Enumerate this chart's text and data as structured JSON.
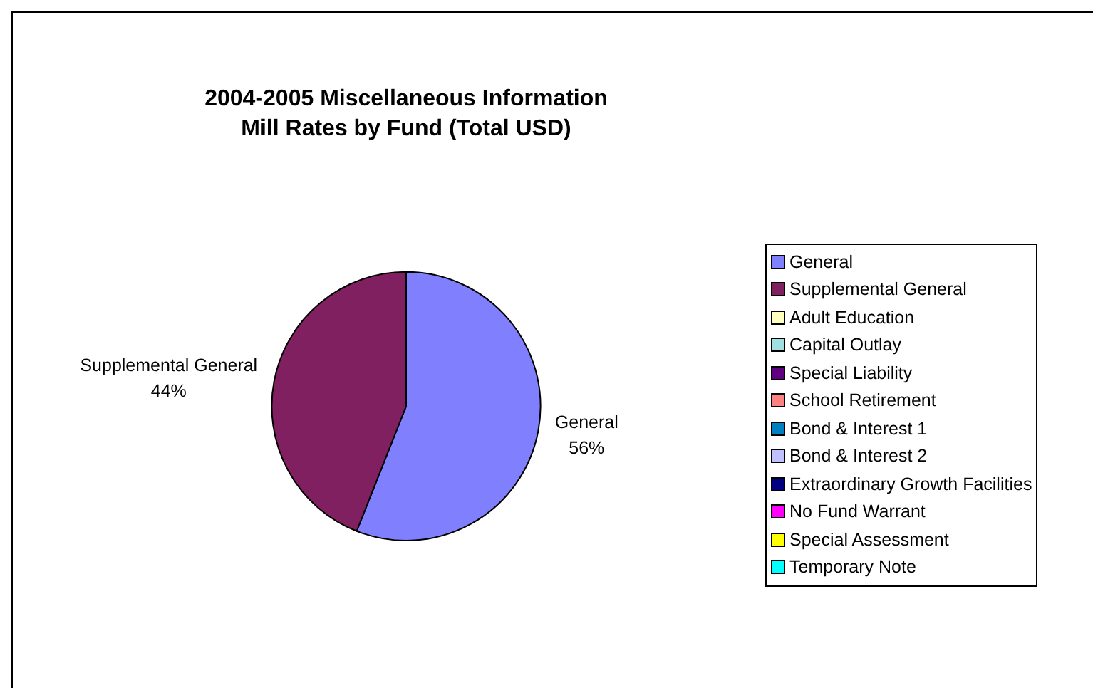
{
  "chart_data": {
    "type": "pie",
    "title": "2004-2005 Miscellaneous Information",
    "subtitle": "Mill Rates by Fund (Total USD)",
    "categories": [
      "General",
      "Supplemental General",
      "Adult Education",
      "Capital Outlay",
      "Special Liability",
      "School Retirement",
      "Bond & Interest 1",
      "Bond & Interest 2",
      "Extraordinary Growth Facilities",
      "No Fund Warrant",
      "Special Assessment",
      "Temporary Note"
    ],
    "values": [
      56,
      44,
      0,
      0,
      0,
      0,
      0,
      0,
      0,
      0,
      0,
      0
    ],
    "colors": [
      "#8080ff",
      "#802060",
      "#ffffc0",
      "#a0e0e0",
      "#600080",
      "#ff8080",
      "#0080c0",
      "#c0c0ff",
      "#000080",
      "#ff00ff",
      "#ffff00",
      "#00ffff"
    ],
    "value_labels": [
      "56%",
      "44%",
      null,
      null,
      null,
      null,
      null,
      null,
      null,
      null,
      null,
      null
    ],
    "legend": "right"
  }
}
